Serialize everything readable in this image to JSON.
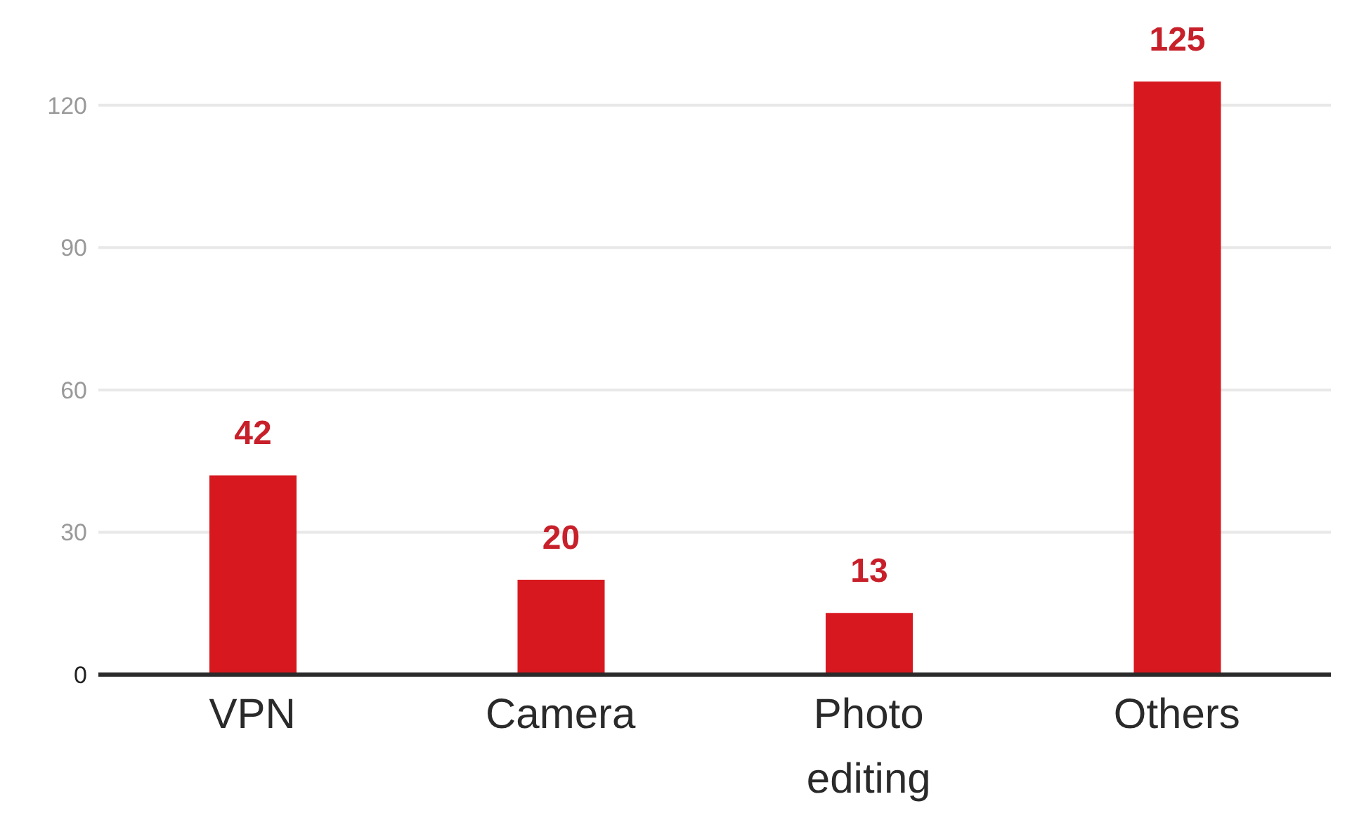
{
  "chart_data": {
    "type": "bar",
    "categories": [
      "VPN",
      "Camera",
      "Photo editing",
      "Others"
    ],
    "values": [
      42,
      20,
      13,
      125
    ],
    "color": "#d7191f",
    "ylim": [
      0,
      125
    ],
    "yticks": [
      0,
      30,
      60,
      90,
      120
    ],
    "grid": "y",
    "data_labels": true
  }
}
